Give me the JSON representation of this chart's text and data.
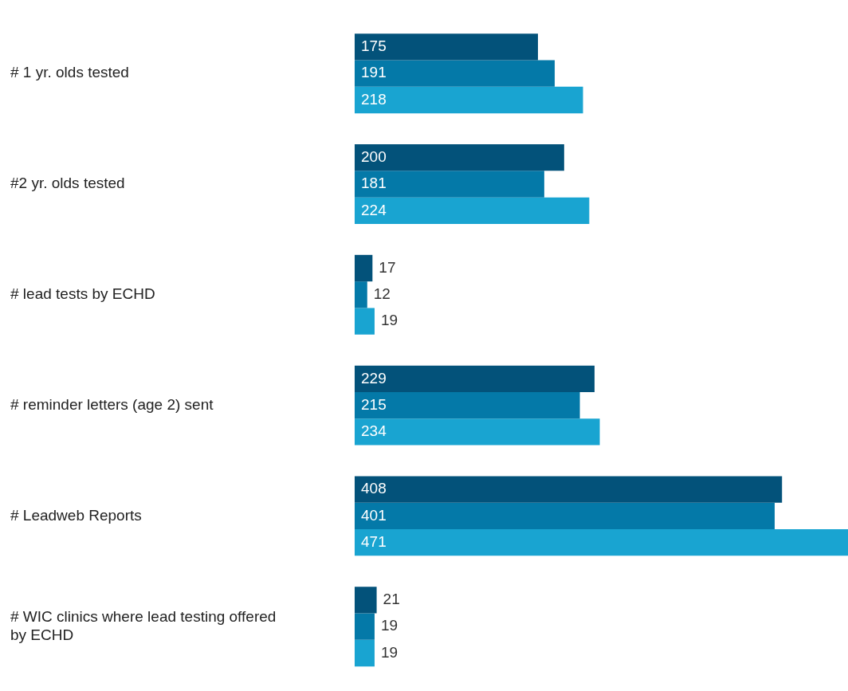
{
  "chart_data": {
    "type": "bar",
    "orientation": "horizontal",
    "categories": [
      "# 1 yr. olds tested",
      "#2 yr. olds tested",
      "# lead tests by ECHD",
      "# reminder letters (age 2) sent",
      "# Leadweb Reports",
      "# WIC clinics where lead testing offered by ECHD"
    ],
    "series": [
      {
        "color": "#03527a",
        "values": [
          175,
          200,
          17,
          229,
          408,
          21
        ]
      },
      {
        "color": "#0479a8",
        "values": [
          191,
          181,
          12,
          215,
          401,
          19
        ]
      },
      {
        "color": "#19a4d1",
        "values": [
          218,
          224,
          19,
          234,
          471,
          19
        ]
      }
    ],
    "data_labels": true,
    "legend": false
  }
}
